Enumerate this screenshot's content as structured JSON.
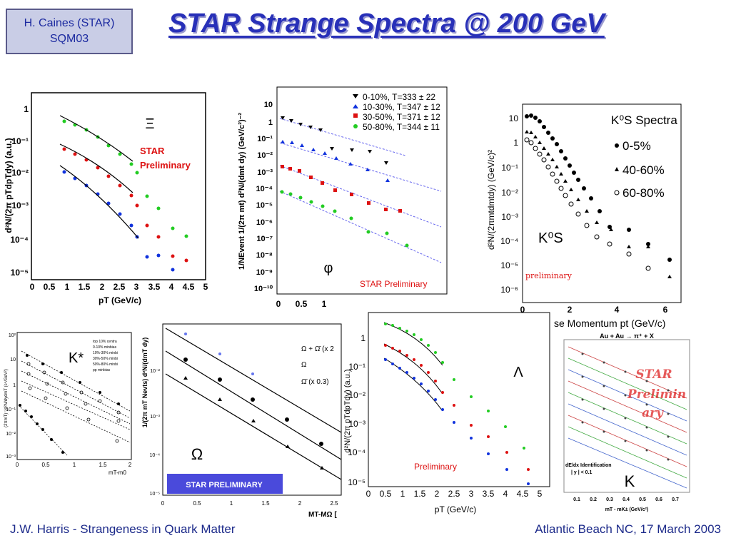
{
  "header": {
    "author_line1": "H. Caines (STAR)",
    "author_line2": "SQM03",
    "title": "STAR Strange Spectra @ 200 GeV"
  },
  "footer": {
    "left": "J.W. Harris - Strangeness in Quark Matter",
    "right": "Atlantic Beach NC, 17 March 2003"
  },
  "panels": {
    "xi": {
      "particle": "Ξ",
      "note_line1": "STAR",
      "note_line2": "Preliminary",
      "ylabel": "d²N/(2π pTdpTdy) (a.u.)",
      "xlabel": "pT (GeV/c)",
      "xticks": [
        "0",
        "0.5",
        "1",
        "1.5",
        "2",
        "2.5",
        "3",
        "3.5",
        "4",
        "4.5",
        "5"
      ],
      "yticks": [
        "1",
        "10⁻¹",
        "10⁻²",
        "10⁻³",
        "10⁻⁴",
        "10⁻⁵"
      ]
    },
    "phi": {
      "particle": "φ",
      "note": "STAR Preliminary",
      "ylabel": "1/NEvent 1/(2π mt) d²N/(dmt dy) (GeV/c²)⁻²",
      "xticks": [
        "0",
        "0.5",
        "1"
      ],
      "yticks": [
        "10",
        "1",
        "10⁻¹",
        "10⁻²",
        "10⁻³",
        "10⁻⁴",
        "10⁻⁵",
        "10⁻⁶",
        "10⁻⁷",
        "10⁻⁸",
        "10⁻⁹",
        "10⁻¹⁰"
      ],
      "legend": [
        "0-10%, T=333 ± 22",
        "10-30%, T=347 ± 12",
        "30-50%, T=371 ± 12",
        "50-80%, T=344 ± 11"
      ]
    },
    "k0s": {
      "legend_title": "K⁰S Spectra",
      "legend": [
        "0-5%",
        "40-60%",
        "60-80%"
      ],
      "label": "K⁰S",
      "note": "preliminary",
      "ylabel": "d²N/(2πmtdmtdy) (GeV/c)²",
      "xlabel": "se Momentum pt (GeV/c)",
      "xticks": [
        "0",
        "2",
        "4",
        "6"
      ],
      "yticks": [
        "10",
        "1",
        "10⁻¹",
        "10⁻²",
        "10⁻³",
        "10⁻⁴",
        "10⁻⁵",
        "10⁻⁶"
      ]
    },
    "kstar": {
      "label": "K*",
      "ylabel": "(2πmT)⁻¹d²N/dydmT (c⁴/GeV²)",
      "xlabel": "mT-m0",
      "legend": [
        "top 10% centra",
        "0-10% minbias",
        "10%-30% minbi",
        "30%-50% minbi",
        "50%-80% minbi",
        "pp minbias"
      ],
      "xticks": [
        "0",
        "0.5",
        "1",
        "1.5",
        "2"
      ],
      "yticks": [
        "10²",
        "10",
        "1",
        "10⁻¹",
        "10⁻²",
        "10⁻³"
      ]
    },
    "omega": {
      "particle": "Ω",
      "banner": "STAR PRELIMINARY",
      "ylabel": "1/(2π mT Nevts) d²N/(dmT dy)",
      "xlabel": "MT-MΩ [",
      "legend": [
        "Ω + Ω̄ (x 2",
        "Ω",
        "Ω̄ (x 0.3)"
      ],
      "xticks": [
        "0",
        "0.5",
        "1",
        "1.5",
        "2",
        "2.5"
      ],
      "yticks": [
        "10⁻²",
        "10⁻³",
        "10⁻⁴",
        "10⁻⁵"
      ]
    },
    "lambda": {
      "particle": "Λ",
      "note": "Preliminary",
      "ylabel": "d²N/(2π pTdpTdy) (a.u.)",
      "xlabel": "pT (GeV/c)",
      "xticks": [
        "0",
        "0.5",
        "1",
        "1.5",
        "2",
        "2.5",
        "3",
        "3.5",
        "4",
        "4.5",
        "5"
      ],
      "yticks": [
        "1",
        "10⁻¹",
        "10⁻²",
        "10⁻³",
        "10⁻⁴",
        "10⁻⁵"
      ]
    },
    "k": {
      "top_text": "Au + Au → π⁺ + X",
      "watermark_line1": "STAR",
      "watermark_line2": "Prelimin",
      "watermark_line3": "ary",
      "label": "K",
      "note_line1": "dE/dx Identification",
      "note_line2": "| y | < 0.1",
      "xlabel": "mT - mK± (GeV/c²)",
      "xticks": [
        "0.1",
        "0.2",
        "0.3",
        "0.4",
        "0.5",
        "0.6",
        "0.7"
      ]
    }
  }
}
